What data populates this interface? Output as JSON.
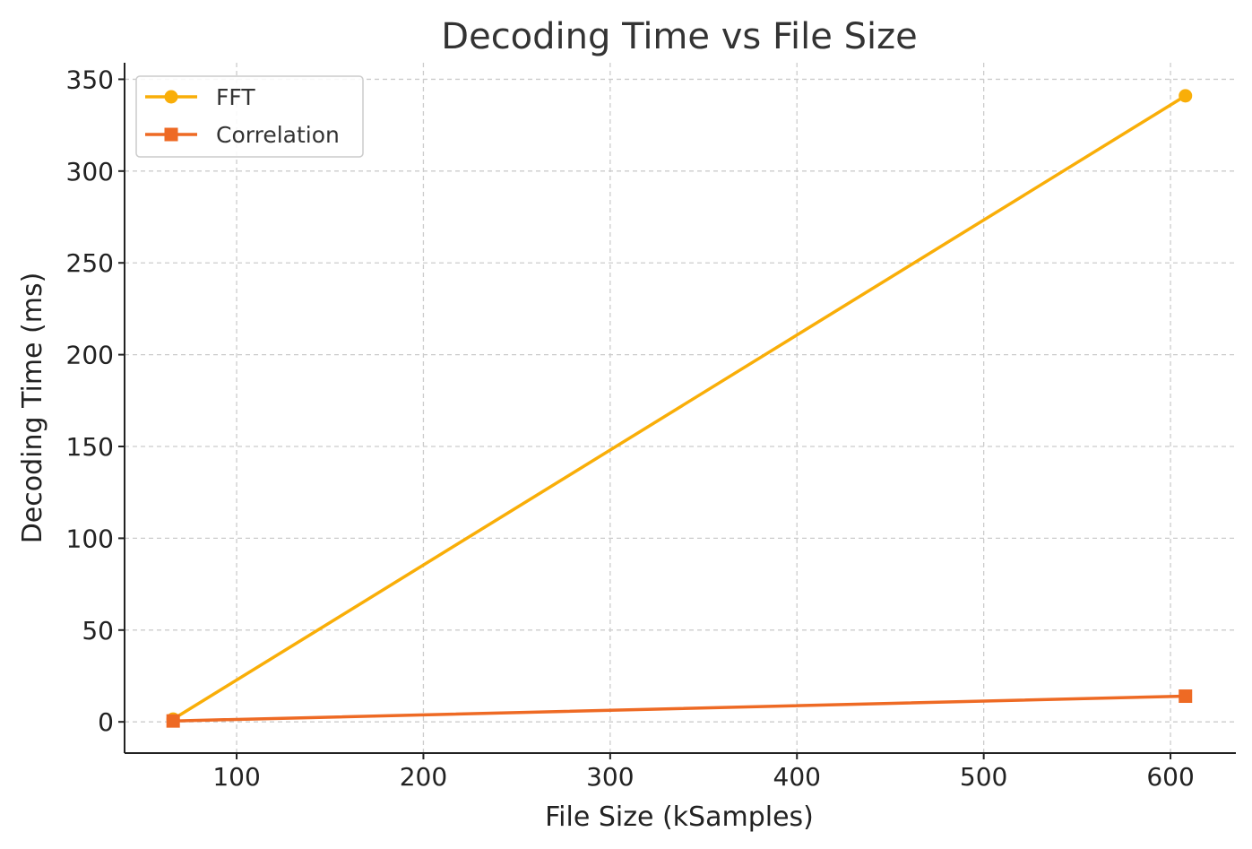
{
  "chart_data": {
    "type": "line",
    "title": "Decoding Time vs File Size",
    "xlabel": "File Size (kSamples)",
    "ylabel": "Decoding Time (ms)",
    "xlim": [
      40,
      635
    ],
    "ylim": [
      -17,
      359
    ],
    "xticks": [
      100,
      200,
      300,
      400,
      500,
      600
    ],
    "yticks": [
      0,
      50,
      100,
      150,
      200,
      250,
      300,
      350
    ],
    "grid": true,
    "legend_position": "top-left",
    "series": [
      {
        "name": "FFT",
        "color": "#F9AE08",
        "marker": "circle",
        "x": [
          66,
          608
        ],
        "y": [
          1.5,
          341
        ]
      },
      {
        "name": "Correlation",
        "color": "#EE6A24",
        "marker": "square",
        "x": [
          66,
          608
        ],
        "y": [
          0.5,
          14
        ]
      }
    ]
  }
}
